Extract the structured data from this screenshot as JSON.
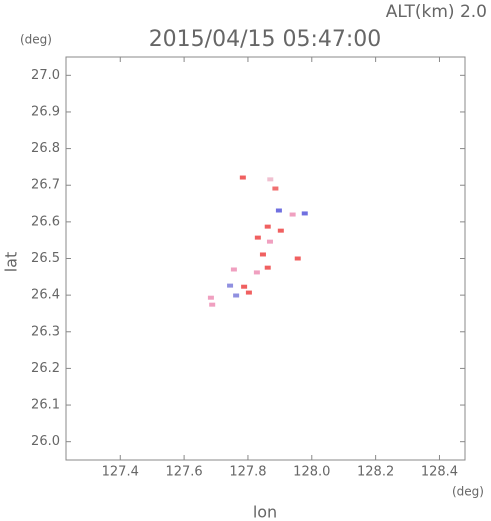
{
  "chart_data": {
    "type": "scatter",
    "title": "2015/04/15 05:47:00",
    "subtitle": "ALT(km) 2.0",
    "x_label": "lon",
    "y_label": "lat",
    "x_unit": "(deg)",
    "y_unit": "(deg)",
    "x": [
      127.784,
      127.87,
      127.886,
      127.897,
      127.94,
      127.978,
      127.862,
      127.903,
      127.831,
      127.869,
      127.956,
      127.847,
      127.862,
      127.756,
      127.828,
      127.788,
      127.744,
      127.803,
      127.763,
      127.684,
      127.688
    ],
    "y": [
      26.721,
      26.716,
      26.691,
      26.631,
      26.62,
      26.623,
      26.587,
      26.576,
      26.557,
      26.546,
      26.5,
      26.511,
      26.475,
      26.47,
      26.462,
      26.423,
      26.426,
      26.407,
      26.399,
      26.393,
      26.374
    ],
    "colors": [
      "#f06060",
      "#f0c0d0",
      "#f07070",
      "#7070e0",
      "#f0a0c0",
      "#7070e0",
      "#f06060",
      "#f06060",
      "#f06060",
      "#f0a0c0",
      "#f06060",
      "#f06060",
      "#f06060",
      "#f0a0c0",
      "#f0a0c0",
      "#f06060",
      "#9090e0",
      "#f06060",
      "#9090e0",
      "#f0a0c0",
      "#f0a0c0"
    ],
    "xlim": [
      127.23,
      128.48
    ],
    "ylim": [
      25.95,
      27.05
    ],
    "xticks": [
      127.4,
      127.6,
      127.8,
      {
        "value": 128,
        "label": "128.0"
      },
      128.2,
      128.4
    ],
    "yticks": [
      {
        "value": 26,
        "label": "26.0"
      },
      26.1,
      26.2,
      26.3,
      26.4,
      26.5,
      26.6,
      26.7,
      26.8,
      26.9,
      {
        "value": 27,
        "label": "27.0"
      }
    ]
  }
}
